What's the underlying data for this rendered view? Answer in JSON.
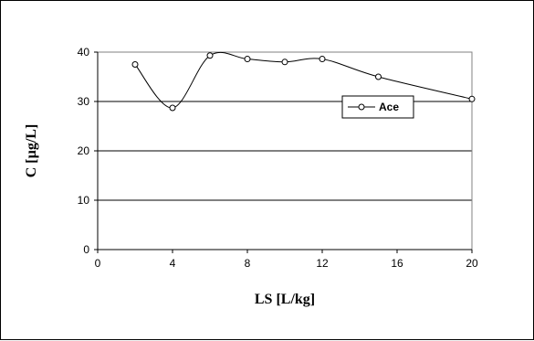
{
  "chart_data": {
    "type": "line",
    "xlabel": "LS [L/kg]",
    "ylabel": "C [µg/L]",
    "xlim": [
      0,
      20
    ],
    "ylim": [
      0,
      40
    ],
    "xticks": [
      0,
      4,
      8,
      12,
      16,
      20
    ],
    "yticks": [
      0,
      10,
      20,
      30,
      40
    ],
    "grid": "horizontal major gridlines",
    "smoothed": true,
    "legend_position": "right",
    "series": [
      {
        "name": "Ace",
        "color": "#000000",
        "marker": "open-circle",
        "x": [
          2,
          4,
          6,
          8,
          10,
          12,
          15,
          20
        ],
        "y": [
          37.5,
          28.7,
          39.3,
          38.6,
          38.0,
          38.6,
          35.0,
          30.5
        ]
      }
    ]
  }
}
